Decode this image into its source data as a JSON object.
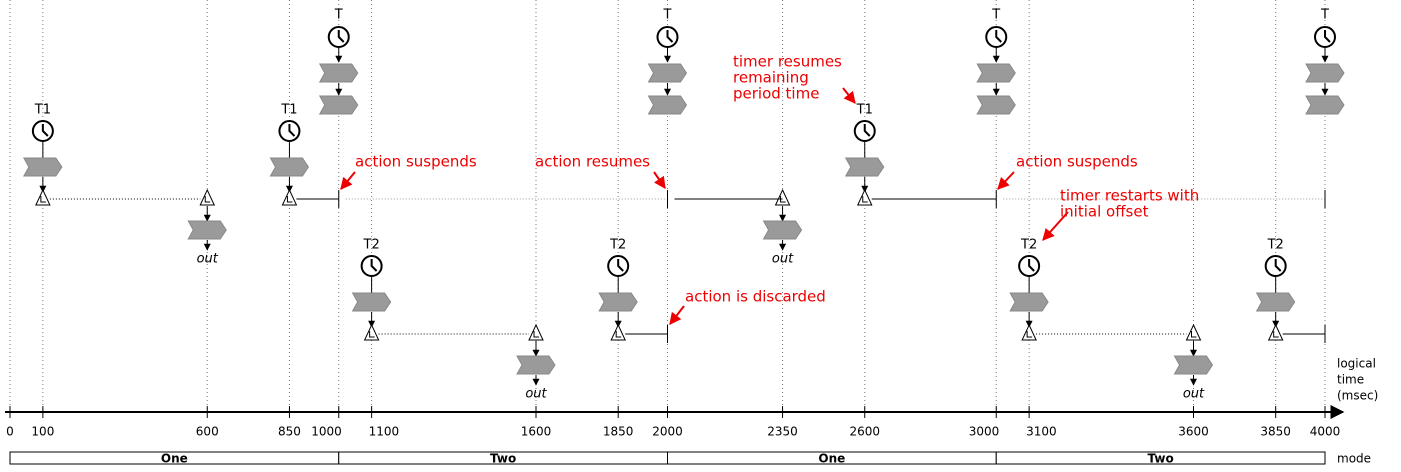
{
  "axis": {
    "ticks": [
      0,
      100,
      600,
      850,
      1000,
      1100,
      1600,
      1850,
      2000,
      2350,
      2600,
      3000,
      3100,
      3600,
      3850,
      4000
    ],
    "label": [
      "logical",
      "time",
      "(msec)"
    ]
  },
  "modes": {
    "label": "mode",
    "segments": [
      "One",
      "Two",
      "One",
      "Two"
    ]
  },
  "timers": [
    {
      "label": "T1",
      "reaction": "1"
    },
    {
      "label": "T1",
      "reaction": "1"
    },
    {
      "label": "T",
      "reaction": "3"
    },
    {
      "label": "T2",
      "reaction": "4"
    },
    {
      "label": "T2",
      "reaction": "4"
    },
    {
      "label": "T",
      "reaction": "6"
    },
    {
      "label": "T1",
      "reaction": "1"
    },
    {
      "label": "T",
      "reaction": "3"
    },
    {
      "label": "T2",
      "reaction": "4"
    },
    {
      "label": "T2",
      "reaction": "4"
    },
    {
      "label": "T",
      "reaction": "6"
    }
  ],
  "outputs": [
    {
      "reaction": "2",
      "label": "out"
    },
    {
      "reaction": "5",
      "label": "out"
    },
    {
      "reaction": "2",
      "label": "out"
    },
    {
      "reaction": "5",
      "label": "out"
    }
  ],
  "annotations": [
    {
      "lines": [
        "action suspends"
      ]
    },
    {
      "lines": [
        "action resumes"
      ]
    },
    {
      "lines": [
        "timer resumes",
        "remaining",
        "period time"
      ]
    },
    {
      "lines": [
        "action suspends"
      ]
    },
    {
      "lines": [
        "timer restarts with",
        "initial offset"
      ]
    },
    {
      "lines": [
        "action is discarded"
      ]
    }
  ]
}
